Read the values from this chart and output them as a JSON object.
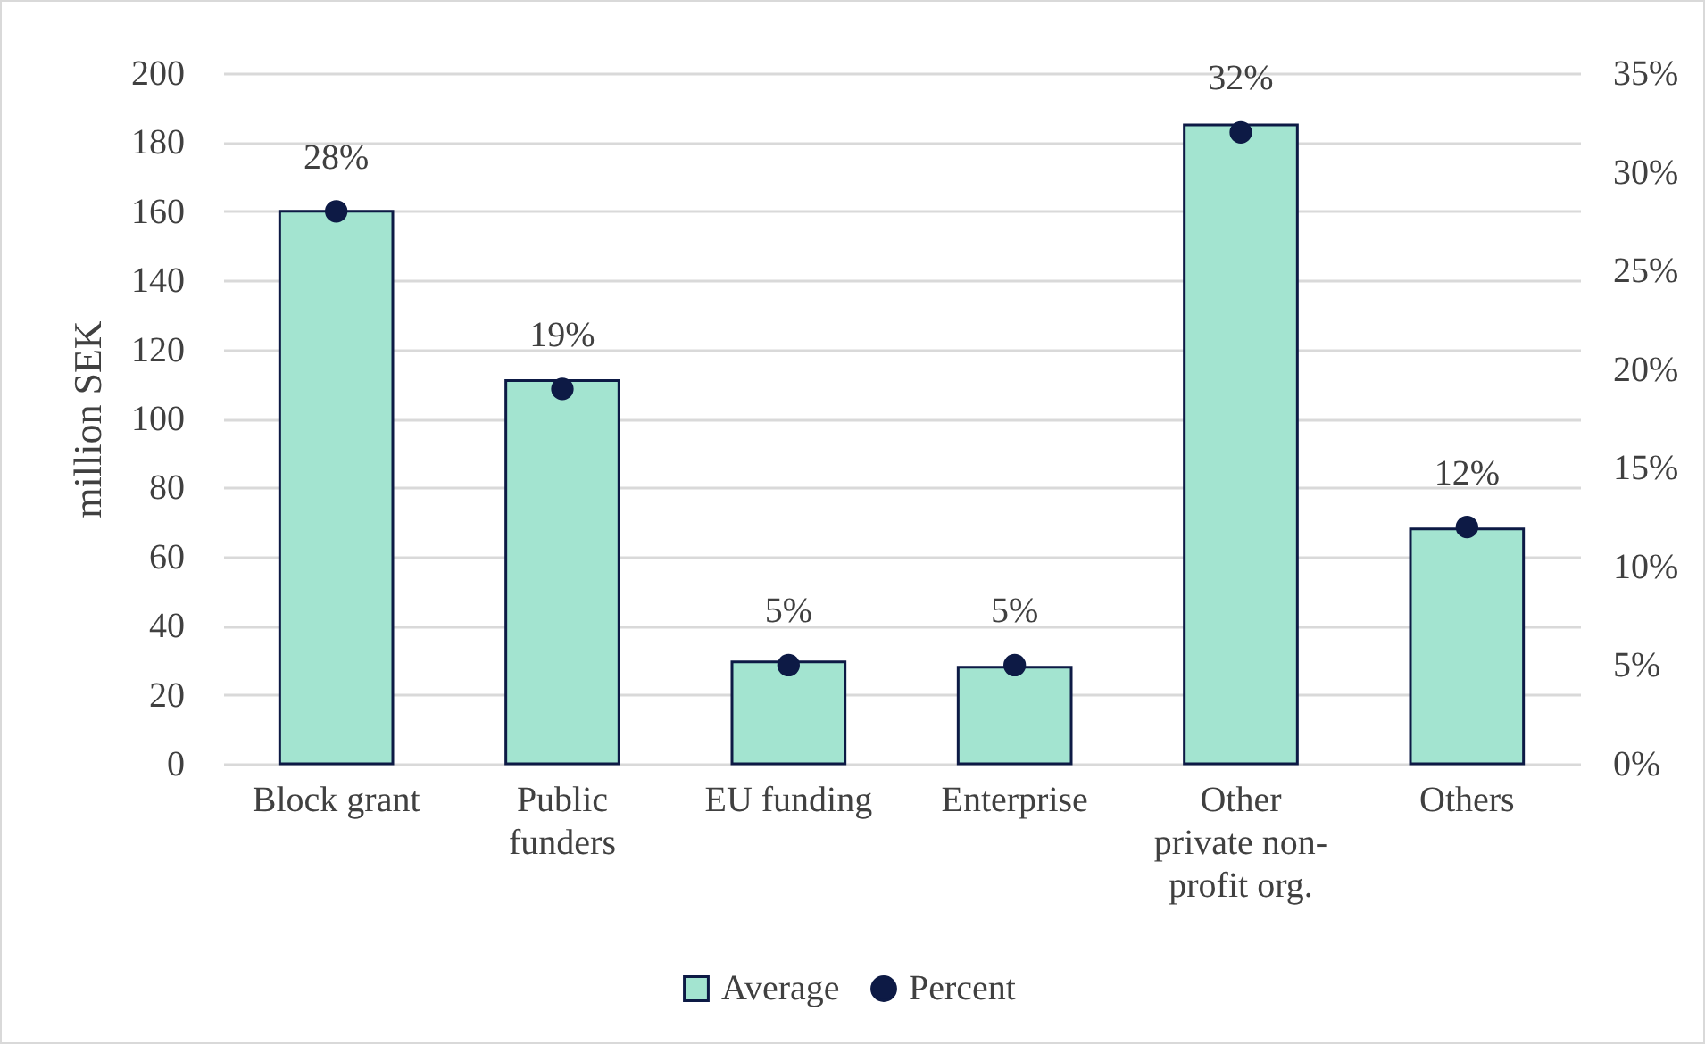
{
  "chart_data": {
    "type": "bar",
    "categories": [
      "Block grant",
      "Public funders",
      "EU funding",
      "Enterprise",
      "Other private non-profit org.",
      "Others"
    ],
    "series": [
      {
        "name": "Average",
        "color": "#a3e4d0",
        "values": [
          160,
          111,
          29.5,
          28,
          185,
          68
        ]
      },
      {
        "name": "Percent",
        "type": "scatter",
        "axis": "y2",
        "color": "#0d1a45",
        "marker": "circle",
        "values": [
          28,
          19,
          5,
          5,
          32,
          12
        ],
        "value_labels": [
          "28%",
          "19%",
          "5%",
          "5%",
          "32%",
          "12%"
        ]
      }
    ],
    "ylabel": "million SEK",
    "ylim": [
      0,
      200
    ],
    "yticks": [
      0,
      20,
      40,
      60,
      80,
      100,
      120,
      140,
      160,
      180,
      200
    ],
    "y2lim": [
      0,
      35
    ],
    "y2ticks": [
      {
        "value": 0,
        "label": "0%"
      },
      {
        "value": 5,
        "label": "5%"
      },
      {
        "value": 10,
        "label": "10%"
      },
      {
        "value": 15,
        "label": "15%"
      },
      {
        "value": 20,
        "label": "20%"
      },
      {
        "value": 25,
        "label": "25%"
      },
      {
        "value": 30,
        "label": "30%"
      },
      {
        "value": 35,
        "label": "35%"
      }
    ],
    "grid": "y",
    "legend": "bottom"
  }
}
